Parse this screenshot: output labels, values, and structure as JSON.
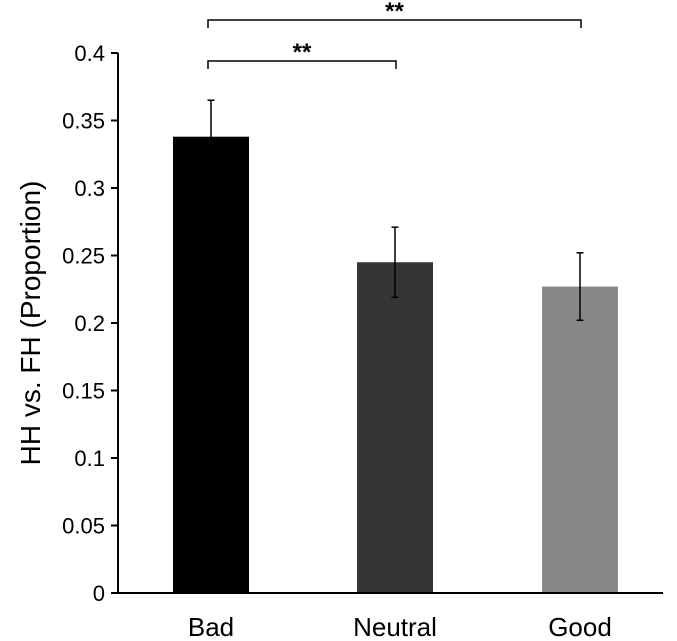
{
  "chart_data": {
    "type": "bar",
    "title": "",
    "xlabel": "",
    "ylabel": "HH vs. FH (Proportion)",
    "ylim": [
      0,
      0.4
    ],
    "yticks": [
      "0",
      "0.05",
      "0.1",
      "0.15",
      "0.2",
      "0.25",
      "0.3",
      "0.35",
      "0.4"
    ],
    "ytick_values": [
      0,
      0.05,
      0.1,
      0.15,
      0.2,
      0.25,
      0.3,
      0.35,
      0.4
    ],
    "categories": [
      "Bad",
      "Neutral",
      "Good"
    ],
    "values": [
      0.338,
      0.245,
      0.227
    ],
    "errors": [
      0.027,
      0.026,
      0.025
    ],
    "colors": [
      "#000000",
      "#353535",
      "#888888"
    ],
    "grid": false,
    "significance": [
      {
        "from": "Bad",
        "to": "Good",
        "label": "**"
      },
      {
        "from": "Bad",
        "to": "Neutral",
        "label": "**"
      }
    ]
  }
}
